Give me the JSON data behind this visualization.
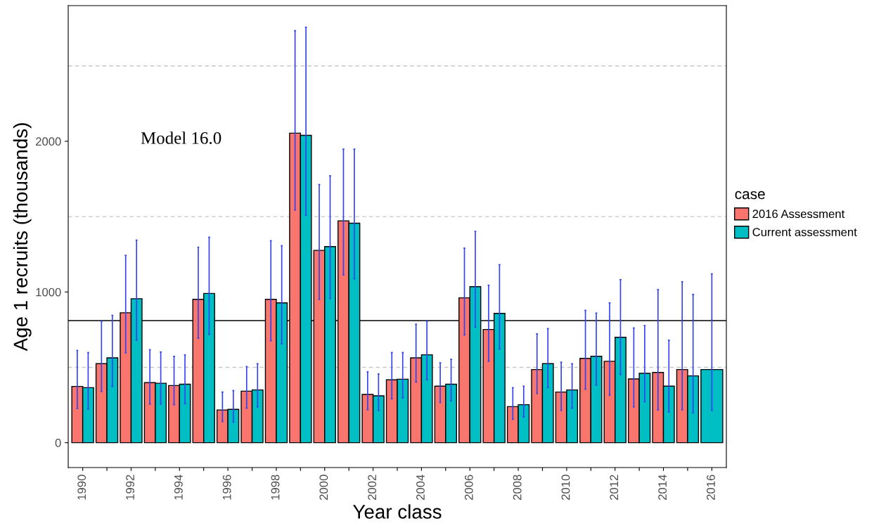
{
  "chart_data": {
    "type": "bar",
    "xlabel": "Year class",
    "ylabel": "Age 1 recruits (thousands)",
    "legend_title": "case",
    "categories": [
      "1990",
      null,
      "1992",
      null,
      "1994",
      null,
      "1996",
      null,
      "1998",
      null,
      "2000",
      null,
      "2002",
      null,
      "2004",
      null,
      "2006",
      null,
      "2008",
      null,
      "2010",
      null,
      "2012",
      null,
      "2014",
      null,
      "2016"
    ],
    "series": [
      {
        "name": "2016 Assessment",
        "color": "#f8766d",
        "values": [
          373,
          524,
          862,
          398,
          379,
          951,
          217,
          342,
          951,
          2054,
          1276,
          1472,
          320,
          417,
          563,
          375,
          961,
          751,
          239,
          485,
          336,
          559,
          540,
          423,
          466,
          485,
          null
        ],
        "errors": [
          [
            227,
            612
          ],
          [
            340,
            806
          ],
          [
            596,
            1243
          ],
          [
            256,
            617
          ],
          [
            252,
            573
          ],
          [
            693,
            1297
          ],
          [
            140,
            336
          ],
          [
            229,
            505
          ],
          [
            676,
            1340
          ],
          [
            1544,
            2734
          ],
          [
            951,
            1713
          ],
          [
            1113,
            1948
          ],
          [
            219,
            470
          ],
          [
            291,
            598
          ],
          [
            402,
            786
          ],
          [
            266,
            530
          ],
          [
            715,
            1291
          ],
          [
            540,
            1045
          ],
          [
            155,
            365
          ],
          [
            326,
            722
          ],
          [
            214,
            534
          ],
          [
            355,
            878
          ],
          [
            315,
            928
          ],
          [
            237,
            761
          ],
          [
            217,
            1016
          ],
          [
            219,
            1068
          ],
          null
        ]
      },
      {
        "name": "Current assessment",
        "color": "#00bfc4",
        "values": [
          365,
          563,
          955,
          394,
          388,
          990,
          221,
          350,
          928,
          2039,
          1301,
          1456,
          311,
          421,
          583,
          388,
          1035,
          858,
          252,
          524,
          350,
          573,
          699,
          460,
          375,
          443,
          485
        ],
        "errors": [
          [
            223,
            598
          ],
          [
            373,
            845
          ],
          [
            680,
            1344
          ],
          [
            256,
            602
          ],
          [
            258,
            583
          ],
          [
            718,
            1363
          ],
          [
            136,
            346
          ],
          [
            237,
            524
          ],
          [
            656,
            1307
          ],
          [
            1509,
            2757
          ],
          [
            957,
            1771
          ],
          [
            1087,
            1948
          ],
          [
            214,
            456
          ],
          [
            297,
            598
          ],
          [
            417,
            806
          ],
          [
            278,
            553
          ],
          [
            767,
            1402
          ],
          [
            621,
            1181
          ],
          [
            171,
            375
          ],
          [
            365,
            757
          ],
          [
            229,
            524
          ],
          [
            383,
            860
          ],
          [
            452,
            1082
          ],
          [
            272,
            777
          ],
          [
            204,
            680
          ],
          [
            198,
            984
          ],
          [
            214,
            1120
          ]
        ]
      }
    ],
    "ylim": [
      -165,
      2900
    ],
    "yticks": [
      0,
      1000,
      2000
    ],
    "grid": false,
    "legend": "right",
    "ref_lines": [
      {
        "axis": "y",
        "value": 500,
        "color": "#c8c8c8",
        "line_style": "dashed"
      },
      {
        "axis": "y",
        "value": 1500,
        "color": "#c8c8c8",
        "line_style": "dashed"
      },
      {
        "axis": "y",
        "value": 2500,
        "color": "#c8c8c8",
        "line_style": "dashed"
      },
      {
        "axis": "y",
        "value": 810,
        "color": "#000000",
        "line_style": "solid"
      }
    ],
    "annotations": [
      "Model 16.0"
    ]
  }
}
